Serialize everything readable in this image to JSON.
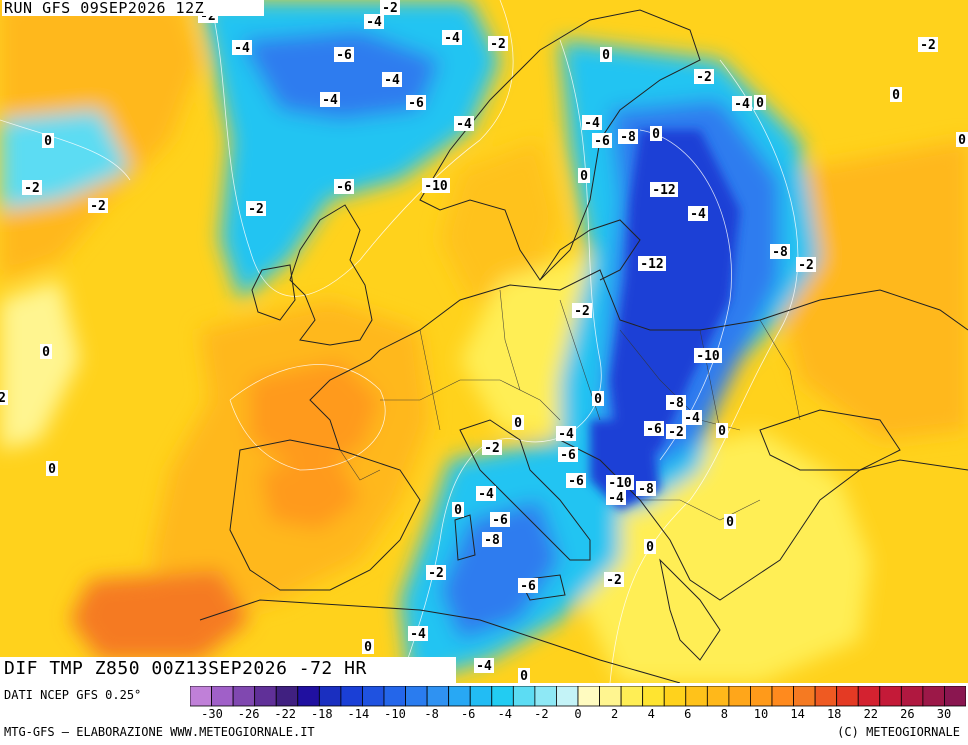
{
  "header": {
    "run_title": "RUN GFS 09SEP2026 12Z"
  },
  "map": {
    "title": "DIF TMP Z850 00Z13SEP2026 -72 HR",
    "colors": {
      "strong_cold": "#1a3fd6",
      "cold": "#2f7cef",
      "cool": "#22c4f2",
      "slight_cool": "#a8eef5",
      "neutral": "#fffbc0",
      "slight_warm": "#ffee55",
      "warm": "#ffd21c",
      "warmer": "#ffb81a",
      "hot": "#ff9a1a",
      "hottest": "#f57a22",
      "border": "#222222",
      "isoline": "#ffffff"
    },
    "labels": [
      {
        "text": "-2"
      },
      {
        "text": "-4"
      },
      {
        "text": "-2"
      },
      {
        "text": "-4"
      },
      {
        "text": "-6"
      },
      {
        "text": "-4"
      },
      {
        "text": "-2"
      },
      {
        "text": "-4"
      },
      {
        "text": "-4"
      },
      {
        "text": "-6"
      },
      {
        "text": "-4"
      },
      {
        "text": "0"
      },
      {
        "text": "-2"
      },
      {
        "text": "-4"
      },
      {
        "text": "0"
      },
      {
        "text": "0"
      },
      {
        "text": "-2"
      },
      {
        "text": "0"
      },
      {
        "text": "-2"
      },
      {
        "text": "-2"
      },
      {
        "text": "-4"
      },
      {
        "text": "-6"
      },
      {
        "text": "-8"
      },
      {
        "text": "0"
      },
      {
        "text": "0"
      },
      {
        "text": "-2"
      },
      {
        "text": "-10"
      },
      {
        "text": "-12"
      },
      {
        "text": "-4"
      },
      {
        "text": "-6"
      },
      {
        "text": "-2"
      },
      {
        "text": "-12"
      },
      {
        "text": "-2"
      },
      {
        "text": "0"
      },
      {
        "text": "0"
      },
      {
        "text": "-8"
      },
      {
        "text": "-10"
      },
      {
        "text": "-8"
      },
      {
        "text": "-4"
      },
      {
        "text": "-6"
      },
      {
        "text": "-2"
      },
      {
        "text": "0"
      },
      {
        "text": "0"
      },
      {
        "text": "-4"
      },
      {
        "text": "-2"
      },
      {
        "text": "-6"
      },
      {
        "text": "0"
      },
      {
        "text": "-6"
      },
      {
        "text": "-10"
      },
      {
        "text": "-8"
      },
      {
        "text": "-4"
      },
      {
        "text": "-4"
      },
      {
        "text": "0"
      },
      {
        "text": "-6"
      },
      {
        "text": "0"
      },
      {
        "text": "-8"
      },
      {
        "text": "0"
      },
      {
        "text": "-2"
      },
      {
        "text": "-6"
      },
      {
        "text": "-2"
      },
      {
        "text": "-4"
      },
      {
        "text": "0"
      },
      {
        "text": "-4"
      },
      {
        "text": "0"
      },
      {
        "text": "2"
      },
      {
        "text": "0"
      }
    ]
  },
  "legend": {
    "source": "DATI NCEP GFS 0.25°",
    "swatches": [
      "#c080d8",
      "#a060c8",
      "#8048b0",
      "#603098",
      "#402080",
      "#2010a0",
      "#1a2fc0",
      "#1a3fd6",
      "#1f52e0",
      "#2466ea",
      "#2a7cef",
      "#2f92f2",
      "#28a8f4",
      "#22bcf4",
      "#22ccf2",
      "#5cdcf3",
      "#8ee8f5",
      "#c4f3f7",
      "#fffbc0",
      "#fff590",
      "#ffee55",
      "#ffe430",
      "#ffd21c",
      "#ffc21a",
      "#ffb81a",
      "#ffa61a",
      "#ff9a1a",
      "#ff8a1e",
      "#f57a22",
      "#ef5a22",
      "#e43a24",
      "#d42230",
      "#c41a38",
      "#b01840",
      "#9c1848",
      "#8a1650"
    ],
    "ticks": [
      "-30",
      "-26",
      "-22",
      "-18",
      "-14",
      "-10",
      "-8",
      "-6",
      "-4",
      "-2",
      "0",
      "2",
      "4",
      "6",
      "8",
      "10",
      "14",
      "18",
      "22",
      "26",
      "30"
    ]
  },
  "credits": {
    "left": "MTG-GFS — ELABORAZIONE WWW.METEOGIORNALE.IT",
    "right": "(C) METEOGIORNALE"
  }
}
